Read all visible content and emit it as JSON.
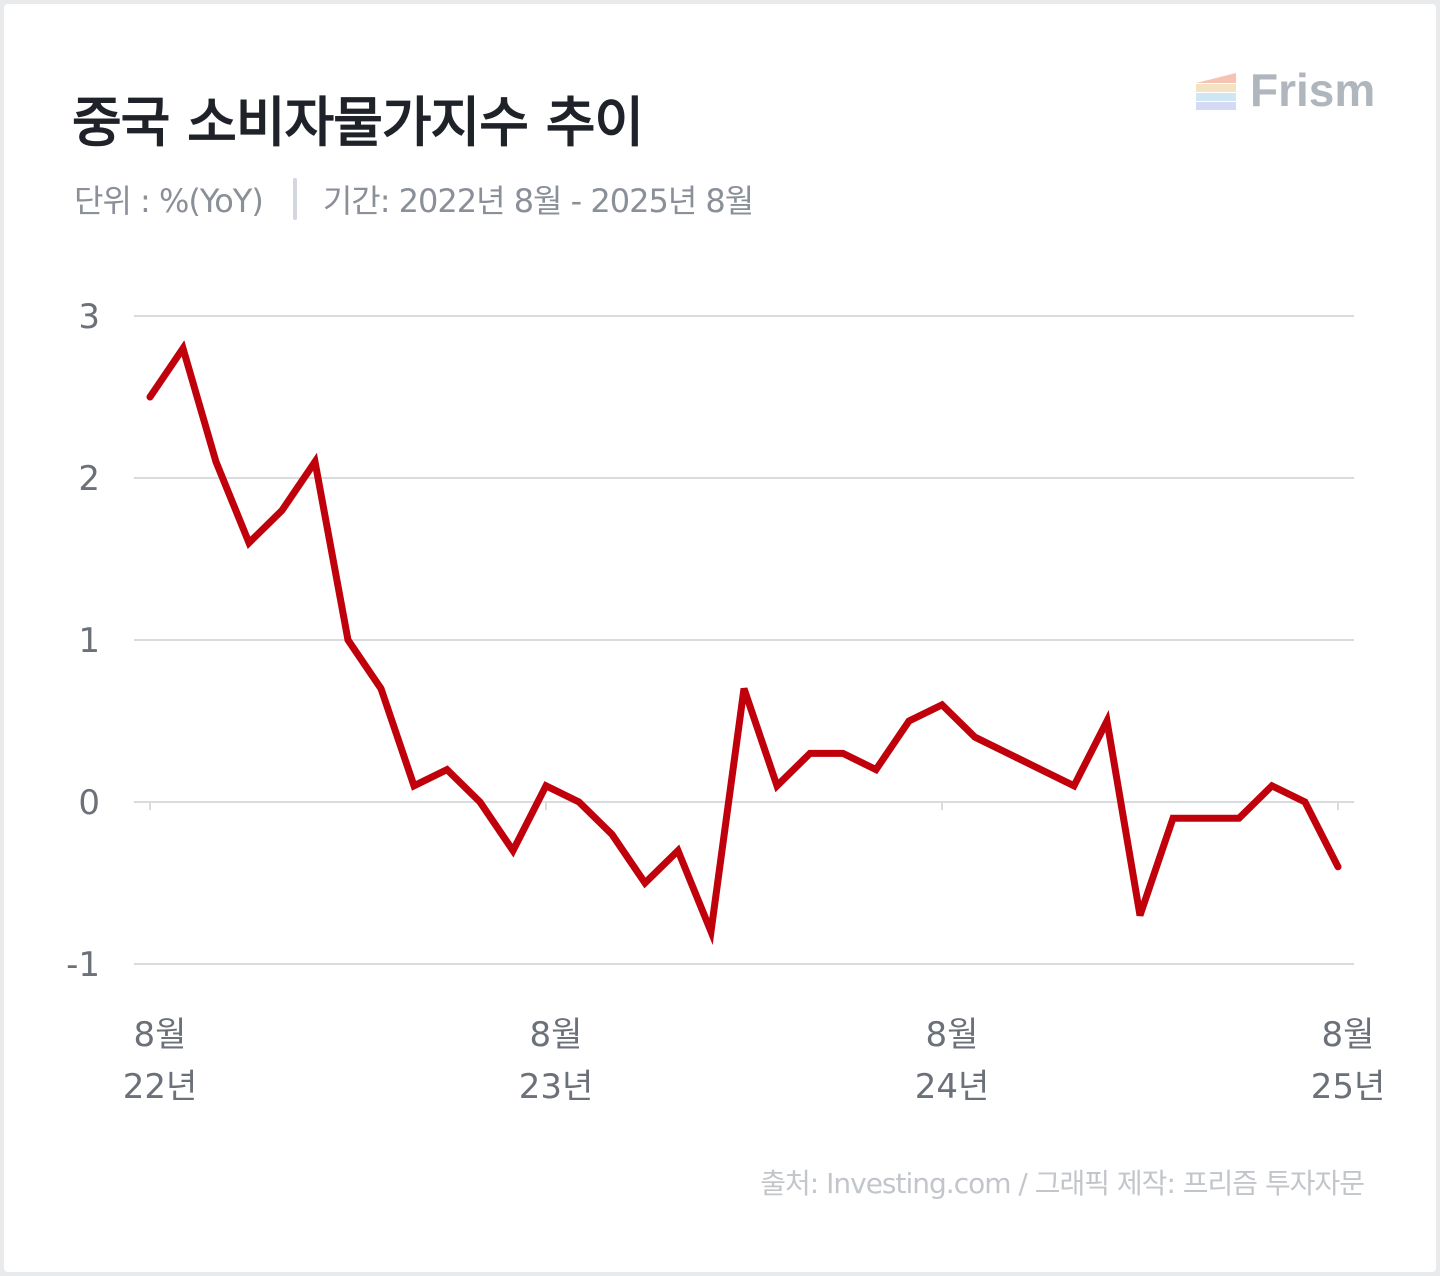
{
  "header": {
    "title": "중국 소비자물가지수 추이",
    "unit": "단위 : %(YoY)",
    "period": "기간: 2022년 8월 - 2025년 8월"
  },
  "brand": {
    "logo_text": "Frism",
    "logo_icon": "frism-logo-icon"
  },
  "footer": {
    "source": "출처: Investing.com / 그래픽 제작: 프리즘 투자자문"
  },
  "colors": {
    "line": "#c0000b",
    "grid": "#d9dbde",
    "axis_text": "#6b7079",
    "title": "#1f2329"
  },
  "chart_data": {
    "type": "line",
    "title": "중국 소비자물가지수 추이",
    "ylabel": "",
    "xlabel": "",
    "ylim": [
      -1,
      3
    ],
    "yticks": [
      3,
      2,
      1,
      0,
      -1
    ],
    "x": [
      "2022-08",
      "2022-09",
      "2022-10",
      "2022-11",
      "2022-12",
      "2023-01",
      "2023-02",
      "2023-03",
      "2023-04",
      "2023-05",
      "2023-06",
      "2023-07",
      "2023-08",
      "2023-09",
      "2023-10",
      "2023-11",
      "2023-12",
      "2024-01",
      "2024-02",
      "2024-03",
      "2024-04",
      "2024-05",
      "2024-06",
      "2024-07",
      "2024-08",
      "2024-09",
      "2024-10",
      "2024-11",
      "2024-12",
      "2025-01",
      "2025-02",
      "2025-03",
      "2025-04",
      "2025-05",
      "2025-06",
      "2025-07",
      "2025-08"
    ],
    "series": [
      {
        "name": "",
        "values": [
          2.5,
          2.8,
          2.1,
          1.6,
          1.8,
          2.1,
          1.0,
          0.7,
          0.1,
          0.2,
          0.0,
          -0.3,
          0.1,
          0.0,
          -0.2,
          -0.5,
          -0.3,
          -0.8,
          0.7,
          0.1,
          0.3,
          0.3,
          0.2,
          0.5,
          0.6,
          0.4,
          0.3,
          0.2,
          0.1,
          0.5,
          -0.7,
          -0.1,
          -0.1,
          -0.1,
          0.1,
          0.0,
          -0.4
        ]
      }
    ],
    "xticks": [
      {
        "x": "2022-08",
        "month": "8월",
        "year": "22년"
      },
      {
        "x": "2023-08",
        "month": "8월",
        "year": "23년"
      },
      {
        "x": "2024-08",
        "month": "8월",
        "year": "24년"
      },
      {
        "x": "2025-08",
        "month": "8월",
        "year": "25년"
      }
    ],
    "grid": true,
    "legend": "none"
  }
}
